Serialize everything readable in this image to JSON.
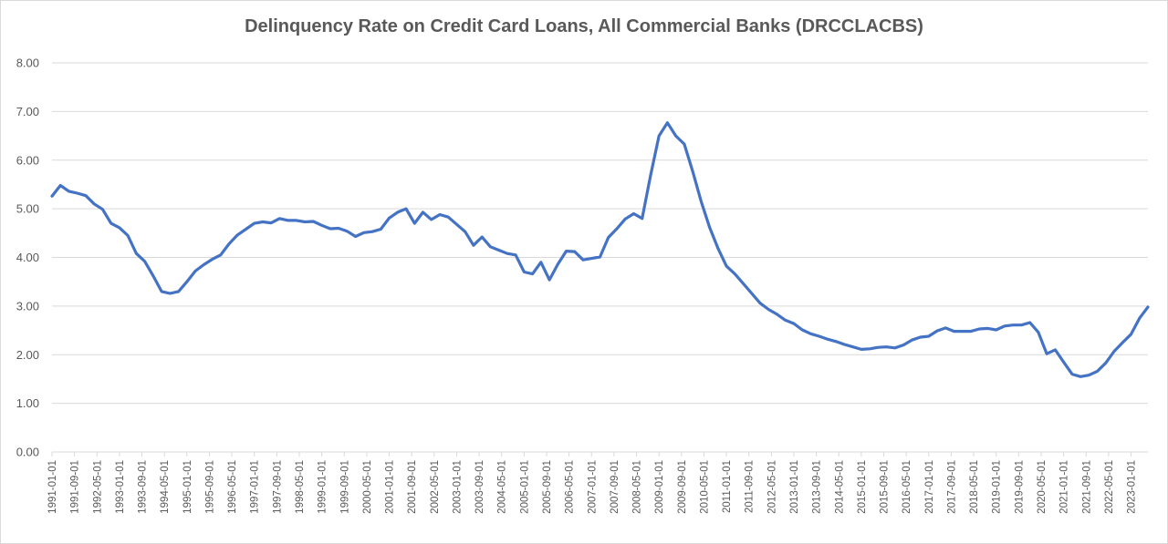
{
  "chart_data": {
    "type": "line",
    "title": "Delinquency Rate on Credit Card Loans, All Commercial Banks (DRCCLACBS)",
    "xlabel": "",
    "ylabel": "",
    "ylim": [
      0,
      8
    ],
    "yticks": [
      "0.00",
      "1.00",
      "2.00",
      "3.00",
      "4.00",
      "5.00",
      "6.00",
      "7.00",
      "8.00"
    ],
    "grid": true,
    "legend": "none",
    "line_color": "#4472c4",
    "xtick_labels": [
      "1991-01-01",
      "1991-09-01",
      "1992-05-01",
      "1993-01-01",
      "1993-09-01",
      "1994-05-01",
      "1995-01-01",
      "1995-09-01",
      "1996-05-01",
      "1997-01-01",
      "1997-09-01",
      "1998-05-01",
      "1999-01-01",
      "1999-09-01",
      "2000-05-01",
      "2001-01-01",
      "2001-09-01",
      "2002-05-01",
      "2003-01-01",
      "2003-09-01",
      "2004-05-01",
      "2005-01-01",
      "2005-09-01",
      "2006-05-01",
      "2007-01-01",
      "2007-09-01",
      "2008-05-01",
      "2009-01-01",
      "2009-09-01",
      "2010-05-01",
      "2011-01-01",
      "2011-09-01",
      "2012-05-01",
      "2013-01-01",
      "2013-09-01",
      "2014-05-01",
      "2015-01-01",
      "2015-09-01",
      "2016-05-01",
      "2017-01-01",
      "2017-09-01",
      "2018-05-01",
      "2019-01-01",
      "2019-09-01",
      "2020-05-01",
      "2021-01-01",
      "2021-09-01",
      "2022-05-01",
      "2023-01-01"
    ],
    "x_start": "1991-01-01",
    "x_step": "quarterly",
    "values": [
      5.26,
      5.48,
      5.36,
      5.32,
      5.27,
      5.1,
      4.99,
      4.7,
      4.61,
      4.45,
      4.08,
      3.92,
      3.62,
      3.3,
      3.26,
      3.3,
      3.5,
      3.72,
      3.85,
      3.96,
      4.05,
      4.28,
      4.46,
      4.58,
      4.7,
      4.73,
      4.71,
      4.8,
      4.76,
      4.76,
      4.73,
      4.74,
      4.66,
      4.59,
      4.6,
      4.54,
      4.43,
      4.51,
      4.53,
      4.58,
      4.81,
      4.93,
      5.0,
      4.7,
      4.93,
      4.78,
      4.88,
      4.83,
      4.68,
      4.53,
      4.25,
      4.42,
      4.22,
      4.15,
      4.08,
      4.05,
      3.7,
      3.66,
      3.9,
      3.54,
      3.86,
      4.13,
      4.12,
      3.95,
      3.98,
      4.01,
      4.41,
      4.59,
      4.79,
      4.9,
      4.8,
      5.68,
      6.5,
      6.77,
      6.5,
      6.33,
      5.77,
      5.15,
      4.62,
      4.19,
      3.82,
      3.66,
      3.46,
      3.26,
      3.06,
      2.93,
      2.83,
      2.71,
      2.64,
      2.51,
      2.43,
      2.38,
      2.32,
      2.27,
      2.21,
      2.16,
      2.11,
      2.12,
      2.15,
      2.16,
      2.14,
      2.2,
      2.3,
      2.36,
      2.38,
      2.49,
      2.55,
      2.48,
      2.48,
      2.48,
      2.53,
      2.54,
      2.51,
      2.59,
      2.61,
      2.61,
      2.66,
      2.46,
      2.02,
      2.1,
      1.85,
      1.6,
      1.55,
      1.58,
      1.66,
      1.83,
      2.07,
      2.25,
      2.42,
      2.75,
      2.98
    ]
  }
}
